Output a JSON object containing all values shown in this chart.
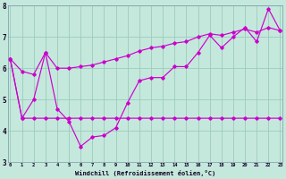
{
  "xlabel": "Windchill (Refroidissement éolien,°C)",
  "background_color": "#c5e8dc",
  "line_color": "#cc00cc",
  "grid_color": "#99ccbb",
  "xlim_min": -0.2,
  "xlim_max": 23.2,
  "ylim_min": 3.0,
  "ylim_max": 8.0,
  "yticks": [
    3,
    4,
    5,
    6,
    7,
    8
  ],
  "xticks": [
    0,
    1,
    2,
    3,
    4,
    5,
    6,
    7,
    8,
    9,
    10,
    11,
    12,
    13,
    14,
    15,
    16,
    17,
    18,
    19,
    20,
    21,
    22,
    23
  ],
  "series": [
    [
      6.3,
      5.9,
      5.8,
      6.5,
      4.7,
      4.3,
      3.5,
      3.8,
      3.85,
      4.1,
      4.9,
      5.6,
      5.7,
      5.7,
      6.05,
      6.05,
      6.5,
      7.05,
      6.65,
      7.0,
      7.3,
      6.85,
      7.9,
      7.2
    ],
    [
      6.3,
      4.4,
      4.4,
      4.4,
      4.4,
      4.4,
      4.4,
      4.4,
      4.4,
      4.4,
      4.4,
      4.4,
      4.4,
      4.4,
      4.4,
      4.4,
      4.4,
      4.4,
      4.4,
      4.4,
      4.4,
      4.4,
      4.4,
      4.4
    ],
    [
      6.3,
      4.4,
      5.0,
      6.5,
      6.0,
      6.0,
      6.05,
      6.1,
      6.2,
      6.3,
      6.4,
      6.55,
      6.65,
      6.7,
      6.8,
      6.85,
      7.0,
      7.1,
      7.05,
      7.15,
      7.25,
      7.15,
      7.3,
      7.2
    ]
  ]
}
